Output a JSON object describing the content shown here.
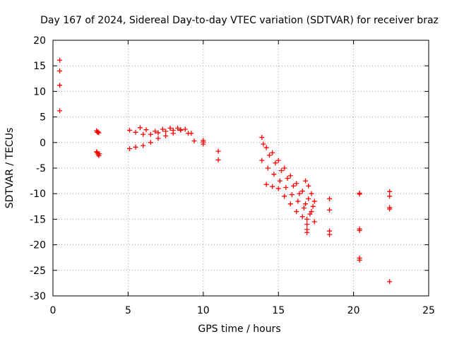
{
  "chart_data": {
    "type": "scatter",
    "title": "Day 167 of 2024, Sidereal Day-to-day VTEC variation (SDTVAR) for receiver braz",
    "xlabel": "GPS time / hours",
    "ylabel": "SDTVAR / TECUs",
    "xlim": [
      0,
      25
    ],
    "ylim": [
      -30,
      20
    ],
    "xticks": [
      0,
      5,
      10,
      15,
      20,
      25
    ],
    "yticks": [
      20,
      15,
      10,
      5,
      0,
      -5,
      -10,
      -15,
      -20,
      -25,
      -30
    ],
    "grid": true,
    "marker": "+",
    "series": [
      {
        "name": "SDTVAR",
        "color": "#ff0000",
        "points": [
          [
            0.45,
            16.1
          ],
          [
            0.45,
            14.0
          ],
          [
            0.45,
            11.2
          ],
          [
            0.45,
            6.2
          ],
          [
            2.9,
            2.3
          ],
          [
            2.95,
            2.0
          ],
          [
            3.0,
            2.1
          ],
          [
            3.05,
            1.9
          ],
          [
            2.9,
            -1.8
          ],
          [
            2.95,
            -2.0
          ],
          [
            3.0,
            -2.3
          ],
          [
            3.05,
            -2.6
          ],
          [
            3.1,
            -2.2
          ],
          [
            5.1,
            -1.2
          ],
          [
            5.5,
            -0.9
          ],
          [
            6.0,
            -0.6
          ],
          [
            6.5,
            0.0
          ],
          [
            7.0,
            0.8
          ],
          [
            7.5,
            1.3
          ],
          [
            8.0,
            1.8
          ],
          [
            8.5,
            2.4
          ],
          [
            9.0,
            1.8
          ],
          [
            9.4,
            0.3
          ],
          [
            5.1,
            2.4
          ],
          [
            5.5,
            2.0
          ],
          [
            6.0,
            1.6
          ],
          [
            6.5,
            1.6
          ],
          [
            7.0,
            1.9
          ],
          [
            7.5,
            2.2
          ],
          [
            8.0,
            2.4
          ],
          [
            8.5,
            2.5
          ],
          [
            5.8,
            2.9
          ],
          [
            6.2,
            2.5
          ],
          [
            6.8,
            2.2
          ],
          [
            7.3,
            2.6
          ],
          [
            7.8,
            2.8
          ],
          [
            8.3,
            2.8
          ],
          [
            8.8,
            2.6
          ],
          [
            9.2,
            1.8
          ],
          [
            10.0,
            0.4
          ],
          [
            10.0,
            0.1
          ],
          [
            10.0,
            -0.3
          ],
          [
            11.0,
            -1.7
          ],
          [
            11.0,
            -3.4
          ],
          [
            13.9,
            1.0
          ],
          [
            14.2,
            -1.0
          ],
          [
            14.6,
            -2.0
          ],
          [
            15.0,
            -3.5
          ],
          [
            15.4,
            -5.0
          ],
          [
            15.8,
            -6.5
          ],
          [
            16.2,
            -8.0
          ],
          [
            16.6,
            -9.5
          ],
          [
            17.0,
            -11.0
          ],
          [
            17.3,
            -12.5
          ],
          [
            13.9,
            -3.5
          ],
          [
            14.3,
            -5.0
          ],
          [
            14.7,
            -6.2
          ],
          [
            15.1,
            -7.5
          ],
          [
            15.5,
            -8.8
          ],
          [
            15.9,
            -10.2
          ],
          [
            16.3,
            -11.5
          ],
          [
            16.7,
            -12.8
          ],
          [
            17.1,
            -14.0
          ],
          [
            17.4,
            -15.5
          ],
          [
            14.0,
            -0.3
          ],
          [
            14.4,
            -2.5
          ],
          [
            14.8,
            -4.0
          ],
          [
            15.2,
            -5.5
          ],
          [
            15.6,
            -7.0
          ],
          [
            16.0,
            -8.5
          ],
          [
            16.4,
            -10.0
          ],
          [
            16.8,
            -12.0
          ],
          [
            17.2,
            -13.5
          ],
          [
            14.2,
            -8.2
          ],
          [
            14.6,
            -8.6
          ],
          [
            15.0,
            -9.0
          ],
          [
            15.4,
            -10.5
          ],
          [
            15.8,
            -12.0
          ],
          [
            16.2,
            -13.5
          ],
          [
            16.6,
            -14.5
          ],
          [
            16.8,
            -7.5
          ],
          [
            17.0,
            -8.5
          ],
          [
            17.2,
            -10.0
          ],
          [
            17.4,
            -11.5
          ],
          [
            16.9,
            -15.0
          ],
          [
            16.9,
            -16.0
          ],
          [
            16.9,
            -17.0
          ],
          [
            16.9,
            -17.6
          ],
          [
            18.4,
            -11.0
          ],
          [
            18.4,
            -13.2
          ],
          [
            18.4,
            -17.3
          ],
          [
            18.4,
            -18.0
          ],
          [
            20.4,
            -9.9
          ],
          [
            20.4,
            -10.1
          ],
          [
            20.4,
            -16.9
          ],
          [
            20.4,
            -17.2
          ],
          [
            20.4,
            -22.6
          ],
          [
            20.4,
            -23.0
          ],
          [
            22.4,
            -9.6
          ],
          [
            22.4,
            -10.5
          ],
          [
            22.4,
            -12.7
          ],
          [
            22.4,
            -13.0
          ],
          [
            22.4,
            -27.2
          ]
        ]
      }
    ]
  }
}
